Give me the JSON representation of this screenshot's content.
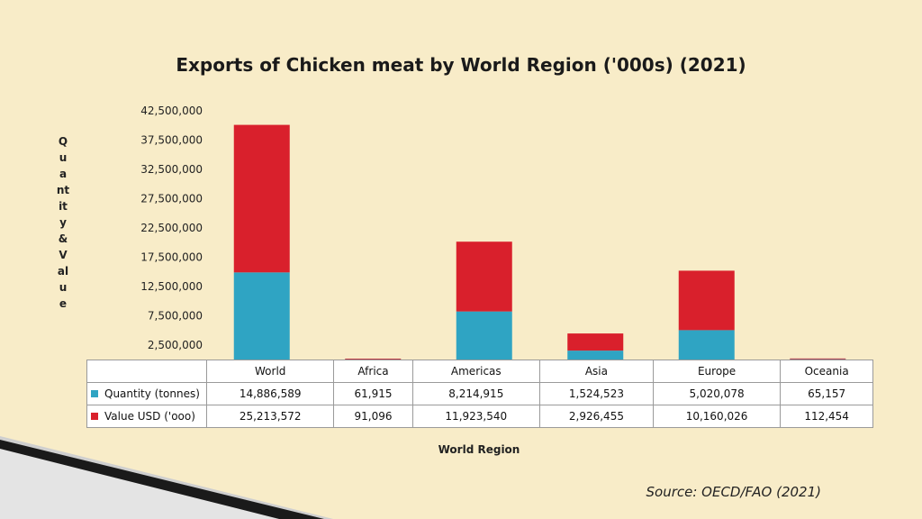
{
  "chart_data": {
    "type": "bar",
    "stacked": true,
    "title": "Exports of Chicken meat by World Region ('000s) (2021)",
    "xlabel": "World Region",
    "ylabel": "Quantity & Value",
    "categories": [
      "World",
      "Africa",
      "Americas",
      "Asia",
      "Europe",
      "Oceania"
    ],
    "series": [
      {
        "name": "Quantity (tonnes)",
        "color": "#2fa4c3",
        "values": [
          14886589,
          61915,
          8214915,
          1524523,
          5020078,
          65157
        ],
        "labels": [
          "14,886,589",
          "61,915",
          "8,214,915",
          "1,524,523",
          "5,020,078",
          "65,157"
        ]
      },
      {
        "name": "Value USD ('ooo)",
        "color": "#d9202c",
        "values": [
          25213572,
          91096,
          11923540,
          2926455,
          10160026,
          112454
        ],
        "labels": [
          "25,213,572",
          "91,096",
          "11,923,540",
          "2,926,455",
          "10,160,026",
          "112,454"
        ]
      }
    ],
    "yticks": [
      "2,500,000",
      "7,500,000",
      "12,500,000",
      "17,500,000",
      "22,500,000",
      "27,500,000",
      "32,500,000",
      "37,500,000",
      "42,500,000"
    ],
    "ytick_values": [
      2500000,
      7500000,
      12500000,
      17500000,
      22500000,
      27500000,
      32500000,
      37500000,
      42500000
    ],
    "ylim": [
      0,
      42500000
    ],
    "grid": false,
    "legend": "data table"
  },
  "source_note": "Source: OECD/FAO (2021)"
}
